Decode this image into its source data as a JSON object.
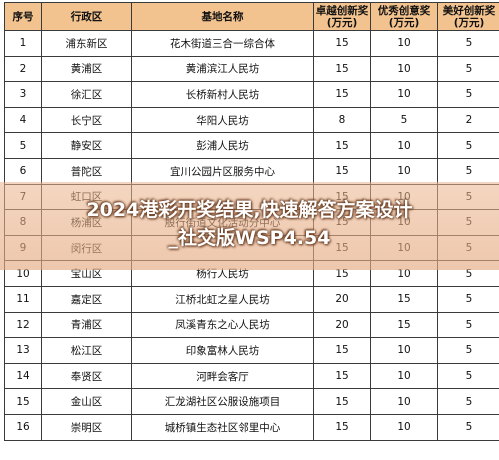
{
  "table": {
    "headers": [
      "序号",
      "行政区",
      "基地名称",
      "卓越创新奖\n(万元)",
      "优秀创意奖\n(万元)",
      "美好创新奖\n(万元)"
    ],
    "rows": [
      [
        "1",
        "浦东新区",
        "花木街道三合一综合体",
        "15",
        "10",
        "5"
      ],
      [
        "2",
        "黄浦区",
        "黄浦滨江人民坊",
        "15",
        "10",
        "5"
      ],
      [
        "3",
        "徐汇区",
        "长桥新村人民坊",
        "15",
        "10",
        "5"
      ],
      [
        "4",
        "长宁区",
        "华阳人民坊",
        "8",
        "5",
        "2"
      ],
      [
        "5",
        "静安区",
        "彭浦人民坊",
        "15",
        "10",
        "5"
      ],
      [
        "6",
        "普陀区",
        "宜川公园片区服务中心",
        "15",
        "10",
        "5"
      ],
      [
        "7",
        "虹口区",
        "",
        "15",
        "10",
        "5"
      ],
      [
        "8",
        "杨浦区",
        "殷行街道文化活动分中心",
        "15",
        "10",
        "5"
      ],
      [
        "9",
        "闵行区",
        "",
        "15",
        "10",
        "5"
      ],
      [
        "10",
        "宝山区",
        "杨行人民坊",
        "15",
        "10",
        "5"
      ],
      [
        "11",
        "嘉定区",
        "江桥北虹之星人民坊",
        "20",
        "15",
        "5"
      ],
      [
        "12",
        "青浦区",
        "凤溪青东之心人民坊",
        "20",
        "15",
        "5"
      ],
      [
        "13",
        "松江区",
        "印象富林人民坊",
        "15",
        "10",
        "5"
      ],
      [
        "14",
        "奉贤区",
        "河畔会客厅",
        "15",
        "10",
        "5"
      ],
      [
        "15",
        "金山区",
        "汇龙湖社区公服设施项目",
        "15",
        "10",
        "5"
      ],
      [
        "16",
        "崇明区",
        "城桥镇生态社区邻里中心",
        "15",
        "10",
        "5"
      ]
    ]
  },
  "overlay": {
    "text": "2024港彩开奖结果,快速解答方案设计\n_社交版WSP4.54"
  }
}
